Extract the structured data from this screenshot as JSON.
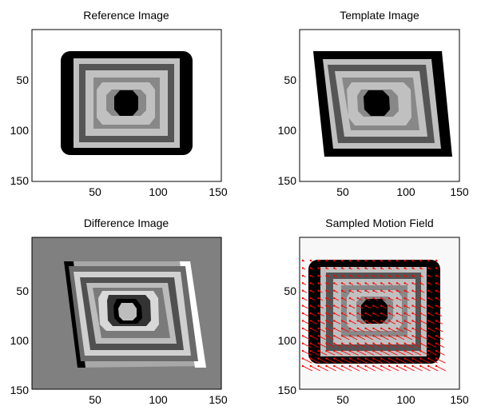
{
  "figure": {
    "panels": [
      {
        "id": "reference",
        "title": "Reference Image",
        "kind": "reference"
      },
      {
        "id": "template",
        "title": "Template Image",
        "kind": "template"
      },
      {
        "id": "difference",
        "title": "Difference Image",
        "kind": "difference"
      },
      {
        "id": "motion",
        "title": "Sampled Motion Field",
        "kind": "motion"
      }
    ],
    "axes": {
      "xticks": [
        "50",
        "100",
        "150"
      ],
      "yticks": [
        "50",
        "100",
        "150"
      ]
    },
    "colors": {
      "arrow": "#ff0000",
      "difference_bg": "#808080",
      "light_gray": "#c0c0c0",
      "dark_gray": "#555555",
      "black": "#000000",
      "white": "#ffffff"
    }
  }
}
